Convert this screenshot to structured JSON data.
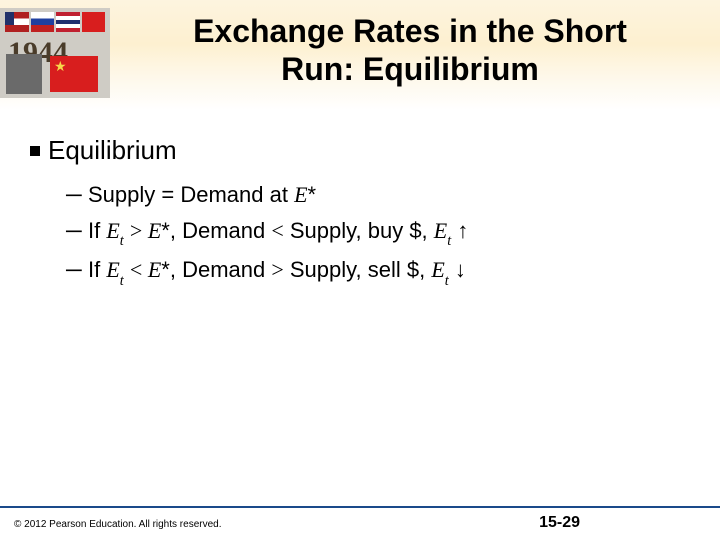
{
  "header": {
    "title_line1": "Exchange Rates in the Short",
    "title_line2": "Run: Equilibrium",
    "title_fontsize": 32,
    "band_gradient": [
      "#fdf4df",
      "#fdf0d0",
      "#fef8ea",
      "#ffffff"
    ],
    "thumb_bignum": "1944"
  },
  "body": {
    "main_bullet": "Equilibrium",
    "main_bullet_fontsize": 26,
    "sub_fontsize": 22,
    "items": [
      {
        "prefix": "Supply = Demand at ",
        "var": "E",
        "sup": "*",
        "tail": ""
      },
      {
        "prefix": "If ",
        "v1": "E",
        "v1sub": "t",
        "cmp": ">",
        "v2": "E",
        "v2sup": "*",
        "mid": ", Demand ",
        "cmp2": "<",
        "mid2": " Supply, buy $, ",
        "v3": "E",
        "v3sub": "t",
        "arrow": "↑"
      },
      {
        "prefix": "If ",
        "v1": "E",
        "v1sub": "t",
        "cmp": "<",
        "v2": "E",
        "v2sup": "*",
        "mid": ", Demand ",
        "cmp2": ">",
        "mid2": " Supply, sell $, ",
        "v3": "E",
        "v3sub": "t",
        "arrow": "↓"
      }
    ]
  },
  "footer": {
    "copyright": "© 2012 Pearson Education. All rights reserved.",
    "page": "15-29",
    "rule_color": "#1a4a8a"
  },
  "colors": {
    "text": "#000000",
    "background": "#ffffff"
  }
}
